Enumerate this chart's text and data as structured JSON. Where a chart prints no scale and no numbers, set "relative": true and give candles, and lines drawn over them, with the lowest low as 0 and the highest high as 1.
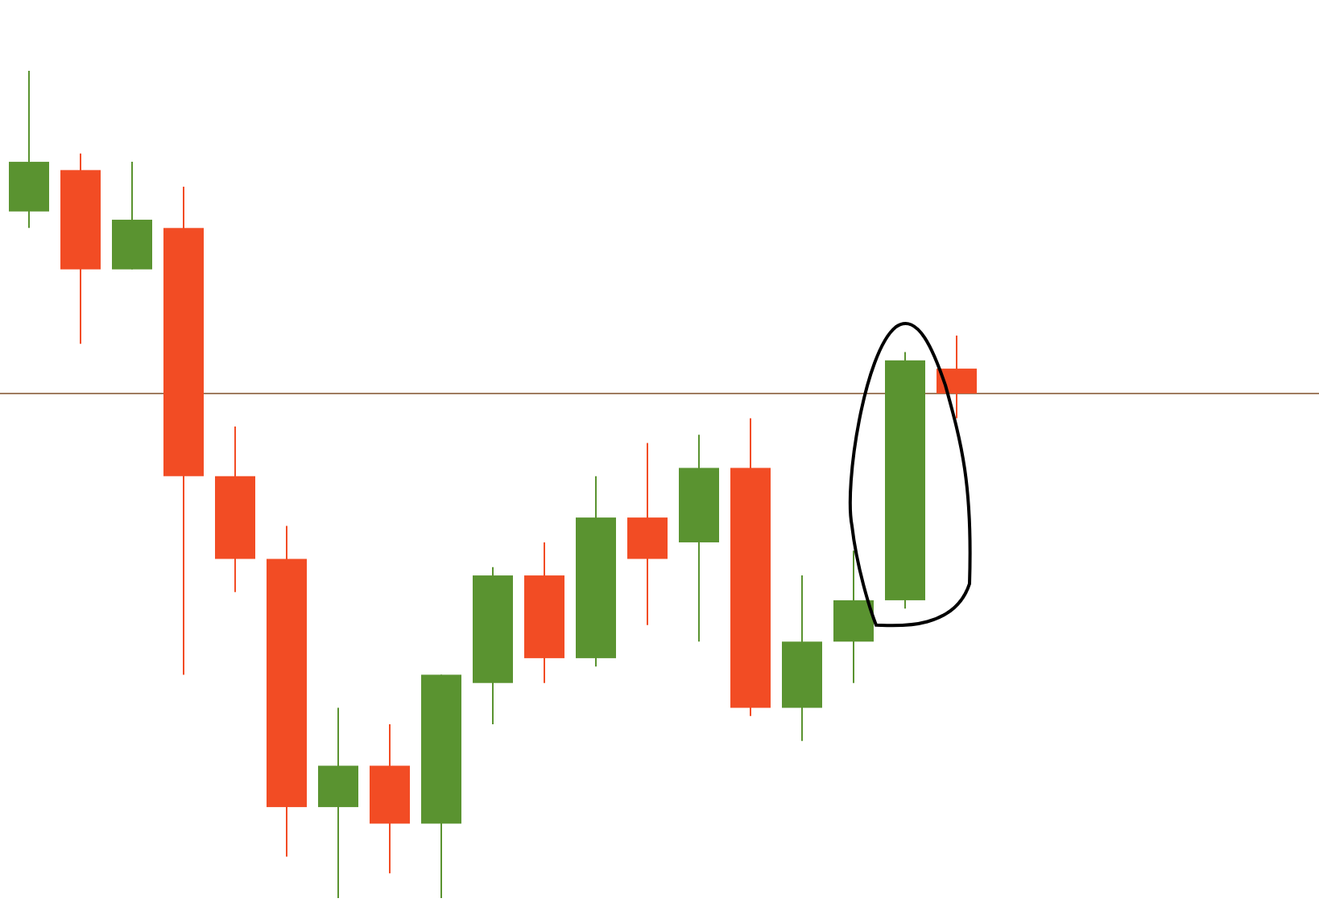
{
  "chart_data": {
    "type": "candlestick",
    "relative": true,
    "categories": [
      null,
      null,
      null,
      null,
      null,
      null,
      null,
      null,
      null,
      null,
      null,
      null,
      null,
      null,
      null,
      null,
      null,
      null,
      null
    ],
    "ohlc": [
      [
        0.83,
        1.0,
        0.81,
        0.89
      ],
      [
        0.88,
        0.9,
        0.67,
        0.76
      ],
      [
        0.76,
        0.89,
        0.76,
        0.82
      ],
      [
        0.81,
        0.86,
        0.27,
        0.51
      ],
      [
        0.51,
        0.57,
        0.37,
        0.41
      ],
      [
        0.41,
        0.45,
        0.05,
        0.11
      ],
      [
        0.11,
        0.23,
        0,
        0.16
      ],
      [
        0.16,
        0.21,
        0.03,
        0.09
      ],
      [
        0.09,
        0.27,
        0,
        0.27
      ],
      [
        0.26,
        0.4,
        0.21,
        0.39
      ],
      [
        0.39,
        0.43,
        0.26,
        0.29
      ],
      [
        0.29,
        0.51,
        0.28,
        0.46
      ],
      [
        0.46,
        0.55,
        0.33,
        0.41
      ],
      [
        0.43,
        0.56,
        0.31,
        0.52
      ],
      [
        0.52,
        0.58,
        0.22,
        0.23
      ],
      [
        0.23,
        0.39,
        0.19,
        0.31
      ],
      [
        0.31,
        0.42,
        0.26,
        0.36
      ],
      [
        0.36,
        0.66,
        0.35,
        0.65
      ],
      [
        0.64,
        0.68,
        0.58,
        0.61
      ]
    ],
    "colors": [
      "#5a9330",
      "#f24c24",
      "#5a9330",
      "#f24c24",
      "#f24c24",
      "#f24c24",
      "#5a9330",
      "#f24c24",
      "#5a9330",
      "#5a9330",
      "#f24c24",
      "#5a9330",
      "#f24c24",
      "#5a9330",
      "#f24c24",
      "#5a9330",
      "#5a9330",
      "#5a9330",
      "#f24c24"
    ],
    "ref_lines": [
      {
        "axis": "y",
        "value": 0.61,
        "color": "#a07c60"
      }
    ]
  }
}
